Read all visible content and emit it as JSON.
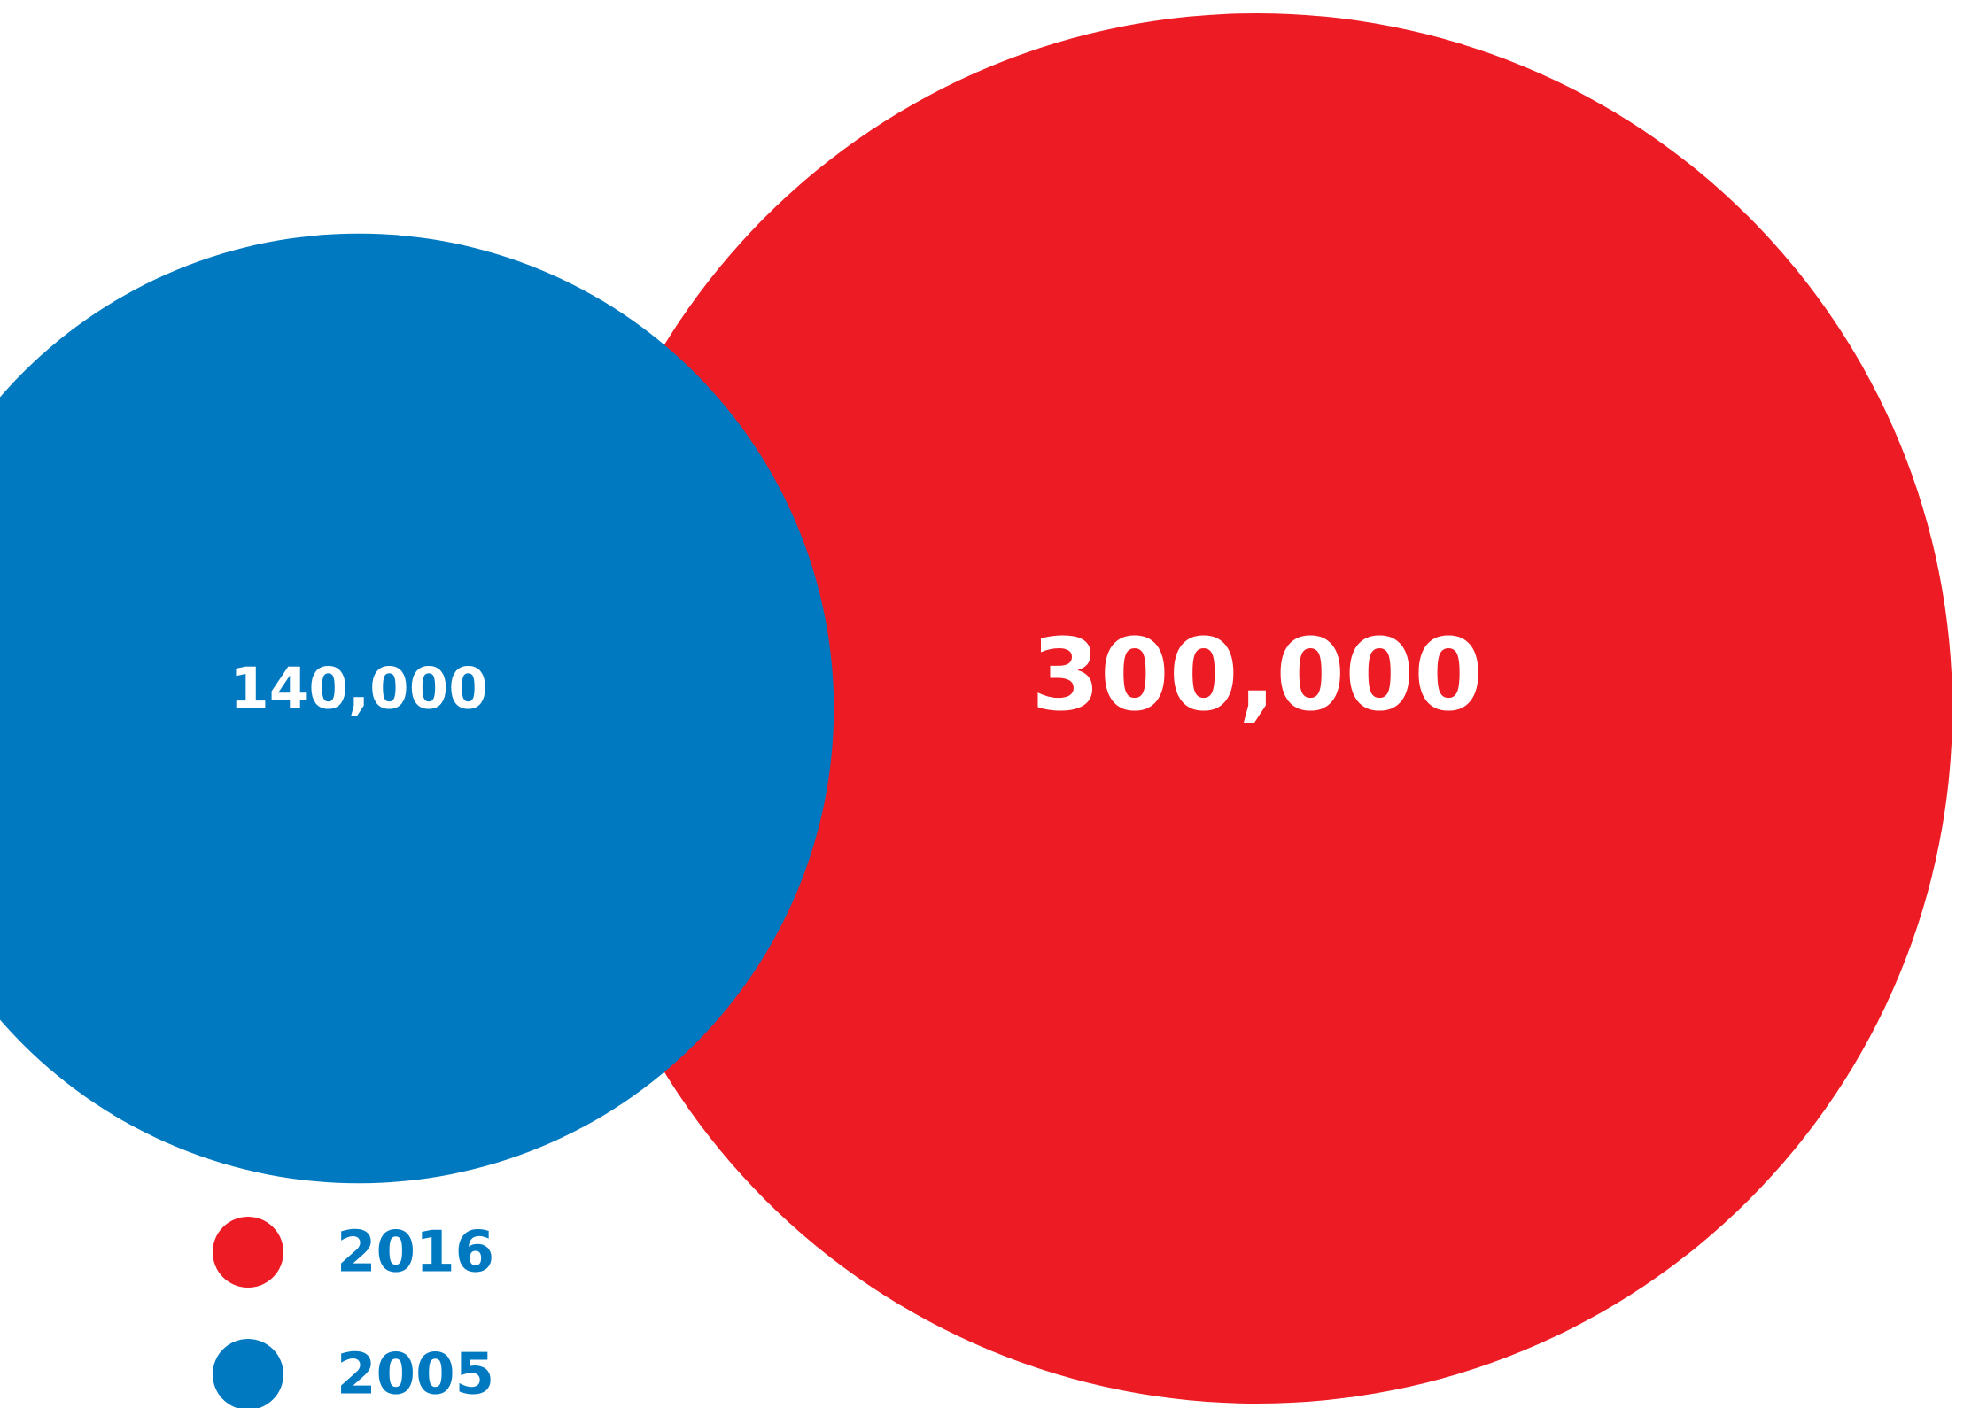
{
  "chart_data": {
    "type": "bubble",
    "series": [
      {
        "name": "2016",
        "value": 300000,
        "label": "300,000",
        "color": "#ED1C24"
      },
      {
        "name": "2005",
        "value": 140000,
        "label": "140,000",
        "color": "#0079C1"
      }
    ],
    "legend": {
      "placement": "bottom-left",
      "text_color": "#0079C1",
      "items": [
        {
          "label": "2016",
          "color": "#ED1C24"
        },
        {
          "label": "2005",
          "color": "#0079C1"
        }
      ]
    }
  }
}
